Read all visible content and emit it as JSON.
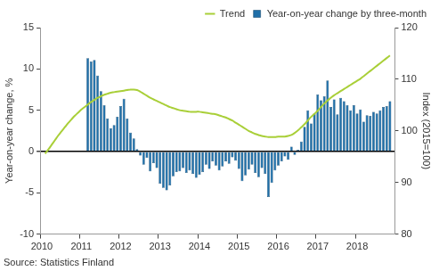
{
  "chart_data": {
    "type": "bar",
    "source": "Source: Statistics Finland",
    "y_label": "Year-on-year change, %",
    "y2_label": "Index (2015=100)",
    "categories": [
      "2010",
      null,
      null,
      null,
      null,
      null,
      null,
      null,
      null,
      null,
      null,
      null,
      "2011",
      null,
      null,
      null,
      null,
      null,
      null,
      null,
      null,
      null,
      null,
      null,
      "2012",
      null,
      null,
      null,
      null,
      null,
      null,
      null,
      null,
      null,
      null,
      null,
      "2013",
      null,
      null,
      null,
      null,
      null,
      null,
      null,
      null,
      null,
      null,
      null,
      "2014",
      null,
      null,
      null,
      null,
      null,
      null,
      null,
      null,
      null,
      null,
      null,
      "2015",
      null,
      null,
      null,
      null,
      null,
      null,
      null,
      null,
      null,
      null,
      null,
      "2016",
      null,
      null,
      null,
      null,
      null,
      null,
      null,
      null,
      null,
      null,
      null,
      "2017",
      null,
      null,
      null,
      null,
      null,
      null,
      null,
      null,
      null,
      null,
      null,
      "2018",
      null,
      null,
      null,
      null,
      null,
      null,
      null,
      null,
      null,
      null,
      null
    ],
    "series": [
      {
        "name": "Trend",
        "type": "line",
        "axis": "y2",
        "color": "#a9cf38",
        "values": [
          null,
          95.6,
          96.4,
          97.3,
          98.2,
          99.1,
          99.9,
          100.7,
          101.5,
          102.2,
          102.9,
          103.5,
          104.1,
          104.6,
          105.1,
          105.6,
          106.0,
          106.4,
          106.7,
          107.0,
          107.2,
          107.4,
          107.5,
          107.6,
          107.7,
          107.8,
          107.9,
          108.0,
          108.0,
          107.9,
          107.6,
          107.2,
          106.8,
          106.4,
          106.1,
          105.8,
          105.5,
          105.2,
          104.9,
          104.6,
          104.4,
          104.2,
          104.0,
          103.9,
          103.8,
          103.7,
          103.7,
          103.7,
          103.7,
          103.6,
          103.5,
          103.4,
          103.3,
          103.2,
          103.0,
          102.8,
          102.6,
          102.3,
          102.0,
          101.6,
          101.2,
          100.8,
          100.4,
          100.0,
          99.7,
          99.4,
          99.2,
          99.0,
          98.9,
          98.8,
          98.8,
          98.8,
          98.9,
          98.9,
          98.9,
          99.0,
          99.2,
          99.6,
          100.1,
          100.7,
          101.3,
          102.0,
          102.7,
          103.3,
          103.9,
          104.6,
          105.3,
          105.9,
          106.4,
          106.9,
          107.3,
          107.7,
          108.1,
          108.5,
          108.9,
          109.3,
          109.7,
          110.1,
          110.6,
          111.1,
          111.6,
          112.1,
          112.6,
          113.1,
          113.6,
          114.1,
          114.6,
          null
        ]
      },
      {
        "name": "Year-on-year change by three-month",
        "type": "bar",
        "color": "#1f6fa8",
        "values": [
          null,
          null,
          null,
          null,
          null,
          null,
          null,
          null,
          null,
          null,
          null,
          null,
          null,
          null,
          11.3,
          10.9,
          11.1,
          9.2,
          7.3,
          5.6,
          4.0,
          2.8,
          3.2,
          4.2,
          5.5,
          6.4,
          4.0,
          2.3,
          1.6,
          0.3,
          -0.5,
          -1.6,
          -0.8,
          -2.4,
          -1.4,
          -2.0,
          -3.9,
          -4.4,
          -4.7,
          -4.1,
          -3.0,
          -2.5,
          -2.4,
          -2.0,
          -2.6,
          -2.3,
          -2.7,
          -3.2,
          -2.8,
          -2.5,
          -1.6,
          -2.1,
          -1.2,
          -1.7,
          -2.3,
          -1.8,
          -1.2,
          -1.5,
          -0.7,
          -1.1,
          -2.1,
          -3.6,
          -2.9,
          -2.2,
          -1.6,
          -2.6,
          -3.1,
          -2.0,
          -2.7,
          -5.5,
          -3.8,
          -2.3,
          -1.7,
          -1.2,
          -0.6,
          -1.0,
          0.6,
          -0.4,
          0.2,
          1.2,
          3.0,
          5.0,
          3.4,
          4.6,
          6.9,
          6.2,
          6.7,
          8.6,
          5.4,
          6.3,
          4.5,
          6.5,
          6.1,
          5.6,
          5.0,
          5.6,
          4.6,
          5.1,
          3.6,
          4.4,
          4.3,
          4.8,
          4.6,
          5.0,
          5.4,
          5.5,
          6.1,
          null
        ]
      }
    ],
    "ylim": [
      -10,
      15
    ],
    "yticks": [
      -10,
      -5,
      0,
      5,
      10,
      15
    ],
    "y2lim": [
      80,
      120
    ],
    "y2ticks": [
      80,
      90,
      100,
      110,
      120
    ],
    "legend": "top",
    "grid": false
  }
}
